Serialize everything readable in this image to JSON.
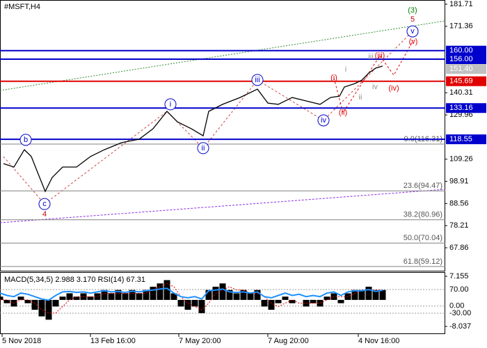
{
  "chart_data": [
    {
      "type": "line",
      "title": "#MSFT,H4",
      "color": "#000000",
      "x": [
        5,
        20,
        35,
        45,
        55,
        65,
        75,
        90,
        110,
        130,
        150,
        175,
        200,
        220,
        240,
        255,
        275,
        292,
        300,
        320,
        345,
        370,
        385,
        400,
        420,
        440,
        460,
        475,
        488,
        495,
        510,
        520,
        530,
        540,
        550
      ],
      "values": [
        107.2,
        105.6,
        113.7,
        110.5,
        102.3,
        94.2,
        100.7,
        105.6,
        105.6,
        110.5,
        113.7,
        117.0,
        118.6,
        123.5,
        131.6,
        126.7,
        123.5,
        120.2,
        131.6,
        134.9,
        138.1,
        142.0,
        135.5,
        134.9,
        138.1,
        136.5,
        134.9,
        138.1,
        138.7,
        143.0,
        144.6,
        146.2,
        149.5,
        151.8,
        152.8
      ],
      "xlim": [
        0,
        640
      ],
      "ylim": [
        56.8,
        183.66
      ],
      "xticks": [
        {
          "value": 3,
          "label": "5 Nov 2018"
        },
        {
          "value": 130,
          "label": "13 Feb 16:00"
        },
        {
          "value": 257,
          "label": "7 May 20:00"
        },
        {
          "value": 385,
          "label": "7 Aug 20:00"
        },
        {
          "value": 515,
          "label": "4 Nov 16:00"
        }
      ],
      "yticks": [
        181.71,
        171.36,
        140.31,
        129.96,
        109.26,
        98.91,
        88.56,
        78.21,
        67.86
      ],
      "levels": [
        {
          "value": 160,
          "label": "160.00",
          "color": "#0000cc"
        },
        {
          "value": 156,
          "label": "156.00",
          "color": "#0000cc"
        },
        {
          "value": 151.4,
          "label": "151.40",
          "color": "#c0c0c0"
        },
        {
          "value": 145.69,
          "label": "145.69",
          "color": "#e00000"
        },
        {
          "value": 133.16,
          "label": "133.16",
          "color": "#0000cc"
        },
        {
          "value": 118.55,
          "label": "118.55",
          "color": "#0000cc"
        }
      ],
      "fibo": [
        {
          "value": 116.31,
          "label": "0.0(116.31)"
        },
        {
          "value": 94.47,
          "label": "23.6(94.47)"
        },
        {
          "value": 80.96,
          "label": "38.2(80.96)"
        },
        {
          "value": 70.04,
          "label": "50.0(70.04)"
        },
        {
          "value": 59.12,
          "label": "61.8(59.12)"
        }
      ],
      "annotations": [
        {
          "text": "(3)",
          "x": 593,
          "y": 178.8,
          "color": "#008000"
        },
        {
          "text": "5",
          "x": 593,
          "y": 174.5,
          "color": "#c00000"
        },
        {
          "text": "v",
          "x": 593,
          "y": 169.0,
          "color": "#0000cc",
          "circled": true
        },
        {
          "text": "(v)",
          "x": 594,
          "y": 164.1,
          "color": "#e00000"
        },
        {
          "text": "(iii)",
          "x": 546,
          "y": 157.6,
          "color": "#e00000"
        },
        {
          "text": "iii",
          "x": 533,
          "y": 157.0,
          "color": "#909090"
        },
        {
          "text": "i",
          "x": 497,
          "y": 151.1,
          "color": "#909090"
        },
        {
          "text": "(i)",
          "x": 480,
          "y": 147.2,
          "color": "#e00000"
        },
        {
          "text": "iv",
          "x": 539,
          "y": 143.0,
          "color": "#909090"
        },
        {
          "text": "(iv)",
          "x": 566,
          "y": 142.4,
          "color": "#e00000"
        },
        {
          "text": "ii",
          "x": 518,
          "y": 138.1,
          "color": "#909090"
        },
        {
          "text": "(ii)",
          "x": 493,
          "y": 131.0,
          "color": "#e00000"
        },
        {
          "text": "iii",
          "x": 370,
          "y": 146.3,
          "color": "#0000cc",
          "circled": true
        },
        {
          "text": "iv",
          "x": 465,
          "y": 127.4,
          "color": "#0000cc",
          "circled": true
        },
        {
          "text": "i",
          "x": 245,
          "y": 134.9,
          "color": "#0000cc",
          "circled": true
        },
        {
          "text": "ii",
          "x": 292,
          "y": 114.4,
          "color": "#0000cc",
          "circled": true
        },
        {
          "text": "b",
          "x": 37,
          "y": 118.3,
          "color": "#0000cc",
          "circled": true
        },
        {
          "text": "c",
          "x": 64,
          "y": 88.3,
          "color": "#0000cc",
          "circled": true
        },
        {
          "text": "4",
          "x": 64,
          "y": 83.5,
          "color": "#c00000"
        }
      ]
    },
    {
      "type": "macd",
      "title": "MACD(5,34,5) 2.988 3.170 RSI(14) 67.31",
      "x": [
        0,
        10,
        20,
        30,
        40,
        50,
        60,
        70,
        80,
        90,
        100,
        110,
        120,
        130,
        140,
        150,
        160,
        170,
        180,
        190,
        200,
        210,
        220,
        230,
        240,
        250,
        260,
        270,
        280,
        290,
        300,
        310,
        320,
        330,
        340,
        350,
        360,
        370,
        380,
        390,
        400,
        410,
        420,
        430,
        440,
        450,
        460,
        470,
        480,
        490,
        500,
        510,
        520,
        530,
        540,
        550
      ],
      "macd": [
        1,
        -1,
        -2,
        1,
        -1,
        -3,
        -5,
        -6,
        -2,
        1,
        2,
        1,
        2,
        1,
        2,
        3,
        2,
        3,
        2,
        3,
        2,
        3,
        4,
        5,
        6,
        2,
        -2,
        -3,
        -2,
        -4,
        3,
        4,
        5,
        3,
        2,
        3,
        2,
        3,
        -2,
        -3,
        -1,
        1,
        -1,
        0,
        -2,
        -1,
        -2,
        1,
        2,
        -1,
        2,
        3,
        3,
        4,
        3,
        3
      ],
      "signal": [
        0,
        0,
        -1,
        0,
        0,
        -1,
        -3,
        -4,
        -4,
        -2,
        0,
        1,
        1,
        1,
        1,
        2,
        2,
        2,
        2,
        2,
        2,
        2,
        3,
        4,
        5,
        4,
        1,
        -1,
        -2,
        -3,
        -1,
        2,
        3,
        4,
        3,
        3,
        2,
        2,
        1,
        -1,
        -2,
        -1,
        0,
        -1,
        -1,
        -1,
        -1,
        0,
        1,
        1,
        1,
        2,
        3,
        3,
        3,
        3
      ],
      "rsi": [
        55,
        45,
        40,
        55,
        50,
        40,
        30,
        25,
        45,
        60,
        62,
        58,
        60,
        55,
        60,
        65,
        60,
        62,
        58,
        63,
        60,
        65,
        68,
        72,
        75,
        55,
        40,
        35,
        40,
        30,
        65,
        68,
        72,
        60,
        58,
        60,
        55,
        60,
        40,
        35,
        45,
        55,
        45,
        50,
        40,
        45,
        40,
        55,
        60,
        45,
        60,
        65,
        65,
        70,
        62,
        67
      ],
      "macd_color": "#000000",
      "signal_color": "#e00000",
      "rsi_color": "#1e90ff",
      "xlim": [
        0,
        640
      ],
      "ylim": [
        -10.36,
        8.21
      ],
      "yticks": [
        7.155,
        -8.037
      ],
      "y2lim": [
        -118.2,
        140.6
      ],
      "y2ticks": [
        {
          "value": 70,
          "label": "70.00"
        },
        {
          "value": 0,
          "label": "0.00"
        },
        {
          "value": -30,
          "label": "-30.00"
        }
      ]
    }
  ]
}
